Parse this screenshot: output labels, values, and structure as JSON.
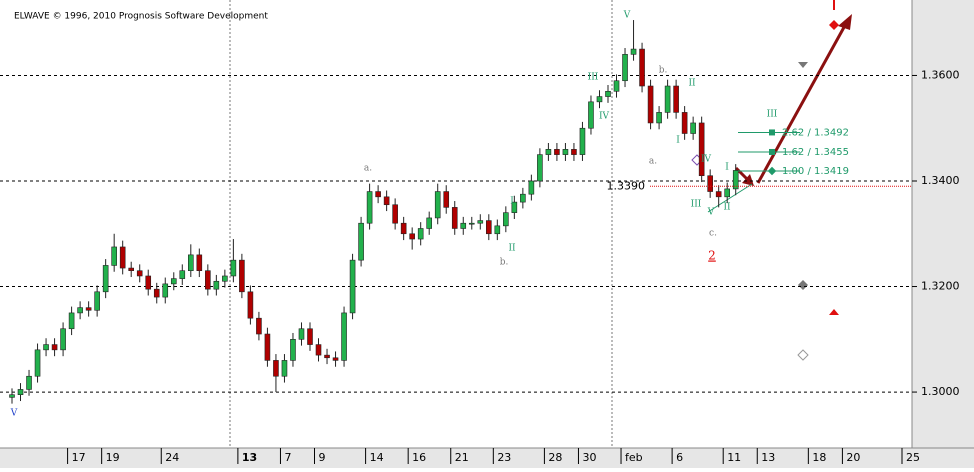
{
  "chart_data": {
    "type": "candlestick",
    "copyright": "ELWAVE © 1996, 2010 Prognosis Software Development",
    "categories": [
      null,
      null,
      null,
      null,
      null,
      null,
      null,
      "17",
      null,
      null,
      null,
      "19",
      null,
      null,
      null,
      null,
      null,
      null,
      "24",
      null,
      null,
      null,
      null,
      null,
      null,
      null,
      null,
      "13",
      null,
      null,
      null,
      null,
      "7",
      null,
      null,
      null,
      "9",
      null,
      null,
      null,
      null,
      null,
      "14",
      null,
      null,
      null,
      null,
      "16",
      null,
      null,
      null,
      null,
      "21",
      null,
      null,
      null,
      null,
      "23",
      null,
      null,
      null,
      null,
      null,
      "28",
      null,
      null,
      null,
      "30",
      null,
      null,
      null,
      null,
      "feb",
      null,
      null,
      null,
      null,
      null,
      "6",
      null,
      null,
      null,
      null,
      null,
      "11",
      null,
      null,
      null,
      "13",
      null,
      null,
      null,
      null,
      null,
      "18",
      null,
      null,
      null,
      "20",
      null,
      null,
      null,
      null,
      null,
      null,
      "25"
    ],
    "open": [
      1.299,
      1.2995,
      1.3005,
      1.303,
      1.308,
      1.309,
      1.308,
      1.312,
      1.315,
      1.316,
      1.3155,
      1.319,
      1.324,
      1.3275,
      1.3235,
      1.323,
      1.322,
      1.3195,
      1.318,
      1.3205,
      1.3215,
      1.323,
      1.326,
      1.323,
      1.3195,
      1.321,
      1.322,
      1.325,
      1.319,
      1.314,
      1.311,
      1.306,
      1.303,
      1.306,
      1.31,
      1.312,
      1.309,
      1.307,
      1.3065,
      1.306,
      1.315,
      1.325,
      1.332,
      1.338,
      1.337,
      1.3355,
      1.332,
      1.33,
      1.329,
      1.331,
      1.333,
      1.338,
      1.335,
      1.331,
      1.332,
      1.332,
      1.3325,
      1.33,
      1.3315,
      1.334,
      1.336,
      1.3375,
      1.34,
      1.345,
      1.346,
      1.345,
      1.346,
      1.345,
      1.35,
      1.355,
      1.356,
      1.357,
      1.359,
      1.364,
      1.365,
      1.358,
      1.351,
      1.353,
      1.358,
      1.353,
      1.349,
      1.351,
      1.341,
      1.338,
      1.337,
      1.3385,
      null,
      null,
      null,
      null,
      null,
      null,
      null,
      null,
      null,
      null,
      null,
      null,
      null,
      null,
      null,
      null,
      null,
      null,
      null,
      null
    ],
    "high": [
      1.3007,
      1.3017,
      1.3042,
      1.3092,
      1.3102,
      1.3102,
      1.3132,
      1.3162,
      1.3172,
      1.3172,
      1.3202,
      1.3252,
      1.33,
      1.3287,
      1.3247,
      1.3242,
      1.3232,
      1.3207,
      1.3217,
      1.3227,
      1.3242,
      1.328,
      1.3272,
      1.3242,
      1.3222,
      1.3232,
      1.329,
      1.3262,
      1.3202,
      1.3152,
      1.3122,
      1.3072,
      1.3072,
      1.3112,
      1.3132,
      1.3132,
      1.3102,
      1.3082,
      1.3077,
      1.3162,
      1.3262,
      1.3332,
      1.3395,
      1.3392,
      1.3382,
      1.3367,
      1.3332,
      1.3312,
      1.3322,
      1.3342,
      1.3395,
      1.3392,
      1.3362,
      1.3332,
      1.3332,
      1.3337,
      1.3337,
      1.3327,
      1.3352,
      1.3372,
      1.3387,
      1.3412,
      1.3462,
      1.3472,
      1.3472,
      1.3472,
      1.3472,
      1.3512,
      1.3562,
      1.3572,
      1.3582,
      1.3602,
      1.3652,
      1.3705,
      1.3662,
      1.3592,
      1.3542,
      1.3592,
      1.3592,
      1.3542,
      1.3522,
      1.3522,
      1.3422,
      1.3392,
      1.3397,
      1.3432,
      null,
      null,
      null,
      null,
      null,
      null,
      null,
      null,
      null,
      null,
      null,
      null,
      null,
      null,
      null,
      null,
      null,
      null,
      null,
      null
    ],
    "low": [
      1.2978,
      1.2983,
      1.2993,
      1.3018,
      1.3068,
      1.3068,
      1.3068,
      1.3108,
      1.3138,
      1.3143,
      1.3143,
      1.3178,
      1.3228,
      1.3223,
      1.3218,
      1.3208,
      1.3183,
      1.3168,
      1.3168,
      1.3193,
      1.3203,
      1.3218,
      1.3218,
      1.3183,
      1.3183,
      1.3198,
      1.3208,
      1.3178,
      1.3128,
      1.3098,
      1.3048,
      1.3,
      1.3018,
      1.3048,
      1.3088,
      1.3078,
      1.3058,
      1.3053,
      1.3048,
      1.3048,
      1.3138,
      1.3238,
      1.3308,
      1.3358,
      1.3343,
      1.3308,
      1.3288,
      1.327,
      1.3278,
      1.3298,
      1.3318,
      1.3338,
      1.3298,
      1.3298,
      1.3308,
      1.3308,
      1.3288,
      1.3288,
      1.3303,
      1.3328,
      1.3348,
      1.3363,
      1.3388,
      1.3438,
      1.3438,
      1.3438,
      1.3438,
      1.3438,
      1.3488,
      1.3538,
      1.3548,
      1.3558,
      1.3578,
      1.3628,
      1.3568,
      1.3498,
      1.3498,
      1.3518,
      1.3518,
      1.3478,
      1.3478,
      1.3398,
      1.3368,
      1.335,
      1.3358,
      1.3373,
      null,
      null,
      null,
      null,
      null,
      null,
      null,
      null,
      null,
      null,
      null,
      null,
      null,
      null,
      null,
      null,
      null,
      null,
      null,
      null
    ],
    "close": [
      1.2995,
      1.3005,
      1.303,
      1.308,
      1.309,
      1.308,
      1.312,
      1.315,
      1.316,
      1.3155,
      1.319,
      1.324,
      1.3275,
      1.3235,
      1.323,
      1.322,
      1.3195,
      1.318,
      1.3205,
      1.3215,
      1.323,
      1.326,
      1.323,
      1.3195,
      1.321,
      1.322,
      1.325,
      1.319,
      1.314,
      1.311,
      1.306,
      1.303,
      1.306,
      1.31,
      1.312,
      1.309,
      1.307,
      1.3065,
      1.306,
      1.315,
      1.325,
      1.332,
      1.338,
      1.337,
      1.3355,
      1.332,
      1.33,
      1.329,
      1.331,
      1.333,
      1.338,
      1.335,
      1.331,
      1.332,
      1.332,
      1.3325,
      1.33,
      1.3315,
      1.334,
      1.336,
      1.3375,
      1.34,
      1.345,
      1.346,
      1.345,
      1.346,
      1.345,
      1.35,
      1.355,
      1.356,
      1.357,
      1.359,
      1.364,
      1.365,
      1.358,
      1.351,
      1.353,
      1.358,
      1.353,
      1.349,
      1.351,
      1.341,
      1.338,
      1.337,
      1.3385,
      1.342,
      null,
      null,
      null,
      null,
      null,
      null,
      null,
      null,
      null,
      null,
      null,
      null,
      null,
      null,
      null,
      null,
      null,
      null,
      null,
      null
    ],
    "up_color": "#22b14c",
    "down_color": "#b00000",
    "ylim": [
      1.2894,
      1.3743
    ],
    "yticks": [
      {
        "value": 1.3,
        "label": "1.3000"
      },
      {
        "value": 1.32,
        "label": "1.3200"
      },
      {
        "value": 1.34,
        "label": "1.3400"
      },
      {
        "value": 1.36,
        "label": "1.3600"
      }
    ],
    "grid": true,
    "current_price": {
      "value": 1.339,
      "label": "1.3390"
    },
    "targets": [
      {
        "value": 1.3492,
        "label": "2.62 / 1.3492"
      },
      {
        "value": 1.3455,
        "label": "1.62 / 1.3455"
      },
      {
        "value": 1.3419,
        "label": "1.00 / 1.3419"
      }
    ],
    "annotations": [
      {
        "text": "V",
        "color": "#1a3cc8"
      },
      {
        "text": "a.",
        "color": "#777777"
      },
      {
        "text": "b.",
        "color": "#777777"
      },
      {
        "text": "I",
        "color": "#1f9a6a"
      },
      {
        "text": "II",
        "color": "#1f9a6a"
      },
      {
        "text": "III",
        "color": "#1f9a6a"
      },
      {
        "text": "IV",
        "color": "#1f9a6a"
      },
      {
        "text": "V",
        "color": "#1f9a6a"
      },
      {
        "text": "b.",
        "color": "#777777"
      },
      {
        "text": "II",
        "color": "#1f9a6a"
      },
      {
        "text": "I",
        "color": "#1f9a6a"
      },
      {
        "text": "a.",
        "color": "#777777"
      },
      {
        "text": "IV",
        "color": "#1f9a6a"
      },
      {
        "text": "III",
        "color": "#1f9a6a"
      },
      {
        "text": "V",
        "color": "#1f9a6a"
      },
      {
        "text": "I",
        "color": "#1f9a6a"
      },
      {
        "text": "II",
        "color": "#1f9a6a"
      },
      {
        "text": "III",
        "color": "#1f9a6a"
      },
      {
        "text": "c.",
        "color": "#777777"
      },
      {
        "text": "2",
        "color": "#e01010"
      }
    ]
  }
}
